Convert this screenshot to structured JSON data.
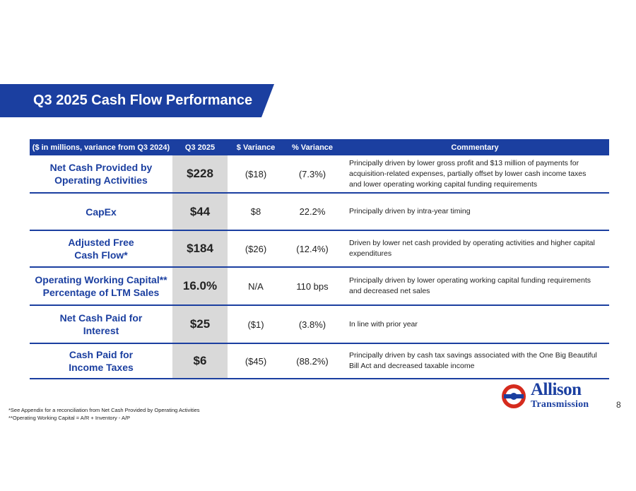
{
  "title": "Q3 2025 Cash Flow Performance",
  "table": {
    "headers": {
      "label": "($ in millions, variance from Q3 2024)",
      "q3": "Q3 2025",
      "var": "$ Variance",
      "pct": "% Variance",
      "com": "Commentary"
    },
    "rows": [
      {
        "label": "Net Cash Provided by\nOperating Activities",
        "q3": "$228",
        "var": "($18)",
        "pct": "(7.3%)",
        "com": "Principally driven by lower gross profit and $13 million of payments for acquisition-related expenses, partially offset by lower cash income taxes and lower operating working capital funding requirements"
      },
      {
        "label": "CapEx",
        "q3": "$44",
        "var": "$8",
        "pct": "22.2%",
        "com": "Principally driven by intra-year timing"
      },
      {
        "label": "Adjusted Free\nCash Flow*",
        "q3": "$184",
        "var": "($26)",
        "pct": "(12.4%)",
        "com": "Driven by lower net cash provided by operating activities and higher capital expenditures"
      },
      {
        "label": "Operating Working Capital**\nPercentage of LTM Sales",
        "q3": "16.0%",
        "var": "N/A",
        "pct": "110 bps",
        "com": "Principally driven by lower operating working capital funding requirements and decreased net sales"
      },
      {
        "label": "Net Cash Paid for\nInterest",
        "q3": "$25",
        "var": "($1)",
        "pct": "(3.8%)",
        "com": "In line with prior year"
      },
      {
        "label": "Cash Paid for\nIncome Taxes",
        "q3": "$6",
        "var": "($45)",
        "pct": "(88.2%)",
        "com": "Principally driven by cash tax savings associated with the One Big Beautiful Bill Act and decreased taxable income"
      }
    ]
  },
  "footnotes": [
    "*See Appendix for a reconciliation from Net Cash Provided by Operating Activities",
    "**Operating Working Capital = A/R + Inventory - A/P"
  ],
  "logo": {
    "line1": "Allison",
    "line2": "Transmission",
    "icon": "allison-logo-icon"
  },
  "page_number": "8",
  "colors": {
    "brand_blue": "#1b3fa0",
    "shade": "#d9d9d9",
    "logo_red": "#d52b1e"
  }
}
